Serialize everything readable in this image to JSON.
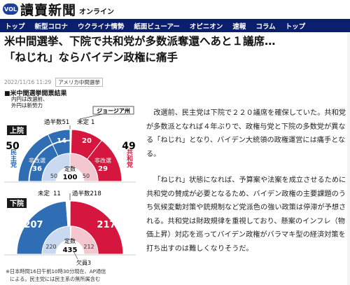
{
  "site": {
    "badge": "VOL",
    "logo": "讀賣新聞",
    "logo_sub": "オンライン"
  },
  "nav": {
    "items": [
      "トップ",
      "新型コロナ",
      "ウクライナ情勢",
      "紙面ビューアー",
      "オピニオン",
      "速報",
      "コラム",
      "トップ"
    ]
  },
  "article": {
    "headline_line1": "米中間選挙、下院で共和党が多数派奪還へあと１議席…",
    "headline_line2": "「ねじれ」ならバイデン政権に痛手",
    "date": "2022/11/16 11:29",
    "tag": "アメリカ中間選挙",
    "paragraphs": [
      "改選前、民主党は下院で２２０議席を確保していた。共和党が多数派となれば４年ぶりで、政権与党と下院の多数党が異なる「ねじれ」となり、バイデン大統領の政権運営には痛手となる。",
      "「ねじれ」状態になれば、予算案や法案を成立させるために共和党の賛成が必要となるため、バイデン政権の主要課題のうち気候変動対策や銃規制など党派色の強い政策は停滞が予想される。共和党は財政規律を重視しており、懸案のインフレ（物価上昇）対応を巡ってバイデン政権がバラマキ型の経済対策を打ち出すのは難しくなりそうだ。"
    ]
  },
  "figure": {
    "title": "■米中間選挙開票結果",
    "note_line1": "内円は改選前、",
    "note_line2": "外円は新勢力",
    "footnote_line1": "※日本時間16日午前10時30分現在、AP通信",
    "footnote_line2": "による。民主党には民主系の無所属含む",
    "colors": {
      "dem": "#2f6db5",
      "dem_light": "#c9daf0",
      "rep": "#d5173f",
      "rep_light": "#f4c6cf",
      "undecided": "#ffffff"
    },
    "senate": {
      "label": "上院",
      "georgia_label": "ジョージア州",
      "majority_label": "過半数51",
      "undecided_label": "未定",
      "undecided_value": "1",
      "dem_label": "民主党",
      "rep_label": "共和党",
      "dem_total": "50",
      "rep_total": "49",
      "dem_new": "14",
      "rep_new": "20",
      "noncontest_label": "非改選",
      "dem_noncontest": "36",
      "rep_noncontest": "29",
      "inner_dem": "50",
      "inner_rep": "50",
      "quota_label": "定数",
      "quota": "100",
      "chart_data": {
        "type": "pie",
        "values": {
          "dem_noncontest": 36,
          "dem_new": 14,
          "undecided": 1,
          "rep_new": 20,
          "rep_noncontest": 29
        },
        "inner": {
          "dem": 50,
          "rep": 50
        }
      }
    },
    "house": {
      "label": "下院",
      "undecided_label": "未定",
      "undecided_value": "11",
      "majority_label": "過半数218",
      "dem_value": "207",
      "rep_value": "217",
      "inner_dem": "220",
      "inner_rep": "212",
      "vacancy_label": "欠員3",
      "quota_label": "定数",
      "quota": "435",
      "chart_data": {
        "type": "pie",
        "values": {
          "dem": 207,
          "undecided": 11,
          "rep": 217
        },
        "inner": {
          "dem": 220,
          "vacancy": 3,
          "rep": 212
        }
      }
    }
  }
}
